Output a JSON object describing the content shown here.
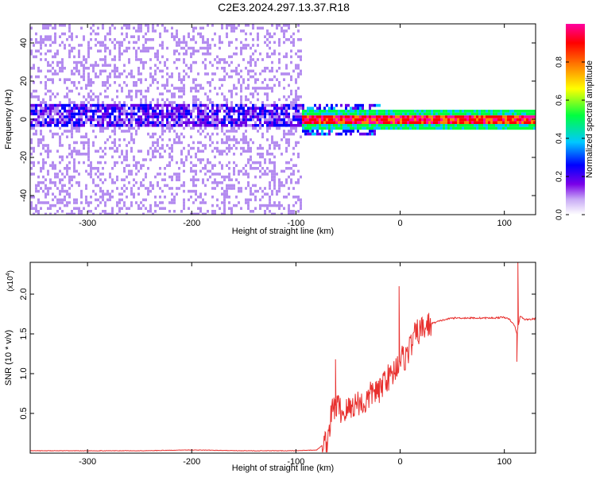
{
  "title": "C2E3.2024.297.13.37.R18",
  "chart_data": [
    {
      "type": "heatmap",
      "xlabel": "Height of straight line (km)",
      "ylabel": "Frequency (Hz)",
      "xlim": [
        -355,
        130
      ],
      "ylim": [
        -50,
        50
      ],
      "x_ticks": [
        -300,
        -200,
        -100,
        0,
        100
      ],
      "y_ticks": [
        -40,
        -20,
        0,
        20,
        40
      ],
      "colorbar": {
        "label": "Normalized spectral amplitude",
        "range": [
          0,
          1
        ],
        "ticks": [
          0.0,
          0.2,
          0.4,
          0.6,
          0.8
        ],
        "tick_labels": [
          "0.0",
          "0.2",
          "0.4",
          "0.6",
          "0.8"
        ],
        "colors": [
          "#ffffff",
          "#b48cf0",
          "#6a00e8",
          "#0000ff",
          "#00c8ff",
          "#00ff40",
          "#ffff00",
          "#ff8000",
          "#ff0000",
          "#ff00a0"
        ]
      },
      "regions": [
        {
          "description_x": [
            -355,
            -95
          ],
          "noise_amplitude": 0.2,
          "band_center_hz": 3,
          "band_amplitude": 0.35
        },
        {
          "description_x": [
            -95,
            130
          ],
          "band_center_hz": 1,
          "band_amplitude": 0.85
        }
      ],
      "grid": false
    },
    {
      "type": "line",
      "xlabel": "Height of straight line (km)",
      "ylabel": "SNR (10 * v/v)",
      "y_multiplier": "(x10",
      "y_multiplier_exp": "4",
      "y_multiplier_close": ")",
      "xlim": [
        -355,
        130
      ],
      "ylim": [
        0,
        2.4
      ],
      "x_ticks": [
        -300,
        -200,
        -100,
        0,
        100
      ],
      "y_ticks": [
        0.5,
        1.0,
        1.5,
        2.0
      ],
      "y_tick_labels": [
        "0.5",
        "1.0",
        "1.5",
        "2.0"
      ],
      "color": "#e8302e",
      "series": [
        {
          "x": [
            -355,
            -250,
            -200,
            -150,
            -100,
            -80,
            -70,
            -65,
            -60,
            -55,
            -50,
            -45,
            -40,
            -35,
            -30,
            -25,
            -20,
            -15,
            -10,
            -5,
            0,
            5,
            10,
            15,
            20,
            30,
            40,
            50,
            60,
            70,
            80,
            90,
            100,
            105,
            110,
            112,
            115,
            120,
            130
          ],
          "y": [
            0.03,
            0.03,
            0.04,
            0.03,
            0.03,
            0.04,
            0.15,
            0.55,
            0.6,
            0.5,
            0.55,
            0.6,
            0.65,
            0.6,
            0.7,
            0.8,
            0.75,
            0.95,
            0.95,
            1.05,
            1.2,
            1.2,
            1.35,
            1.5,
            1.55,
            1.63,
            1.67,
            1.7,
            1.7,
            1.7,
            1.7,
            1.7,
            1.71,
            1.68,
            1.6,
            1.5,
            1.72,
            1.68,
            1.69
          ]
        }
      ],
      "spikes": [
        {
          "x": -62,
          "y": 1.18
        },
        {
          "x": -1,
          "y": 2.1
        },
        {
          "x": 113,
          "y": 2.4
        },
        {
          "x": 112,
          "y": 1.15
        }
      ],
      "grid": false
    }
  ]
}
